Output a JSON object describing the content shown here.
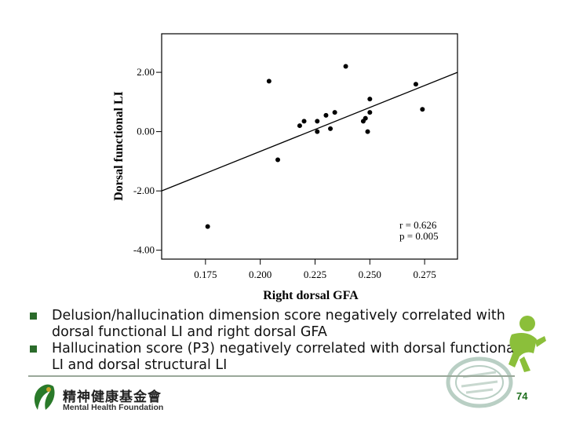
{
  "chart_data": {
    "type": "scatter",
    "xlabel": "Right dorsal GFA",
    "ylabel": "Dorsal functional LI",
    "xlim": [
      0.155,
      0.29
    ],
    "ylim": [
      -4.3,
      3.3
    ],
    "xticks": [
      0.175,
      0.2,
      0.225,
      0.25,
      0.275
    ],
    "xtick_labels": [
      "0.175",
      "0.200",
      "0.225",
      "0.250",
      "0.275"
    ],
    "yticks": [
      -4.0,
      -2.0,
      0.0,
      2.0
    ],
    "ytick_labels": [
      "-4.00",
      "-2.00",
      "0.00",
      "2.00"
    ],
    "grid": false,
    "points": [
      {
        "x": 0.176,
        "y": -3.2
      },
      {
        "x": 0.204,
        "y": 1.7
      },
      {
        "x": 0.208,
        "y": -0.95
      },
      {
        "x": 0.218,
        "y": 0.2
      },
      {
        "x": 0.22,
        "y": 0.35
      },
      {
        "x": 0.226,
        "y": 0.35
      },
      {
        "x": 0.226,
        "y": 0.0
      },
      {
        "x": 0.23,
        "y": 0.55
      },
      {
        "x": 0.232,
        "y": 0.1
      },
      {
        "x": 0.234,
        "y": 0.65
      },
      {
        "x": 0.239,
        "y": 2.2
      },
      {
        "x": 0.247,
        "y": 0.35
      },
      {
        "x": 0.248,
        "y": 0.45
      },
      {
        "x": 0.249,
        "y": 0.0
      },
      {
        "x": 0.25,
        "y": 1.1
      },
      {
        "x": 0.25,
        "y": 0.65
      },
      {
        "x": 0.271,
        "y": 1.6
      },
      {
        "x": 0.274,
        "y": 0.75
      }
    ],
    "fit_line": {
      "x": [
        0.155,
        0.29
      ],
      "y": [
        -2.0,
        2.0
      ]
    },
    "annotations": [
      "r = 0.626",
      "p = 0.005"
    ]
  },
  "bullets": [
    "Delusion/hallucination dimension score negatively correlated with dorsal functional LI and right dorsal GFA",
    "Hallucination score (P3) negatively correlated with dorsal functional LI and dorsal structural LI"
  ],
  "footer": {
    "org_cn": "精神健康基金會",
    "org_en": "Mental Health Foundation",
    "page_number": "74"
  },
  "colors": {
    "marker": "#000000",
    "bullet_marker": "#2b6b2b",
    "page_number": "#1f6f1f",
    "deco_green": "#8bbf3a"
  },
  "icons": [
    "bullet-square-icon",
    "foundation-logo-icon",
    "figure-decoration-icon",
    "seal-decoration-icon"
  ]
}
